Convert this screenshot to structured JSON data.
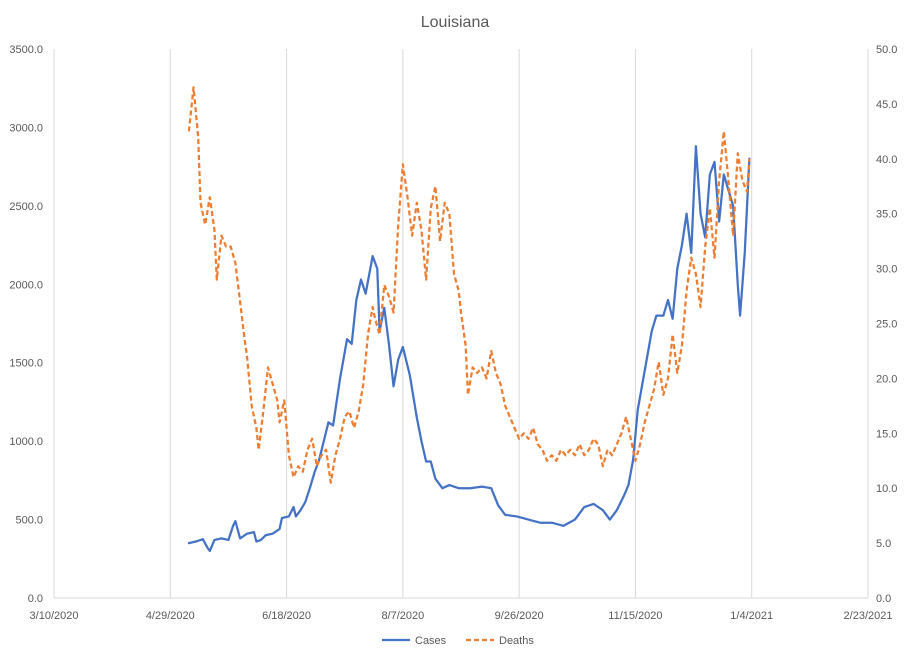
{
  "chart_data": {
    "type": "line",
    "title": "Louisiana",
    "x_axis": {
      "type": "date",
      "ticks": [
        "3/10/2020",
        "4/29/2020",
        "6/18/2020",
        "8/7/2020",
        "9/26/2020",
        "11/15/2020",
        "1/4/2021",
        "2/23/2021"
      ],
      "range": [
        "2020-03-10",
        "2021-02-23"
      ]
    },
    "y_axis_left": {
      "ticks": [
        "0.0",
        "500.0",
        "1000.0",
        "1500.0",
        "2000.0",
        "2500.0",
        "3000.0",
        "3500.0"
      ],
      "range": [
        0,
        3500
      ]
    },
    "y_axis_right": {
      "ticks": [
        "0.0",
        "5.0",
        "10.0",
        "15.0",
        "20.0",
        "25.0",
        "30.0",
        "35.0",
        "40.0",
        "45.0",
        "50.0"
      ],
      "range": [
        0,
        50
      ]
    },
    "grid": "vertical",
    "legend": {
      "position": "bottom",
      "items": [
        "Cases",
        "Deaths"
      ]
    },
    "colors": {
      "cases": "#4472c4",
      "deaths": "#ed7d31",
      "grid": "#d9d9d9",
      "text": "#595959"
    },
    "series": [
      {
        "name": "Cases",
        "axis": "left",
        "style": "solid",
        "points": [
          [
            "2020-05-07",
            350
          ],
          [
            "2020-05-10",
            360
          ],
          [
            "2020-05-13",
            375
          ],
          [
            "2020-05-15",
            320
          ],
          [
            "2020-05-16",
            300
          ],
          [
            "2020-05-18",
            370
          ],
          [
            "2020-05-21",
            380
          ],
          [
            "2020-05-24",
            370
          ],
          [
            "2020-05-26",
            460
          ],
          [
            "2020-05-27",
            490
          ],
          [
            "2020-05-29",
            380
          ],
          [
            "2020-06-01",
            410
          ],
          [
            "2020-06-04",
            420
          ],
          [
            "2020-06-05",
            360
          ],
          [
            "2020-06-07",
            370
          ],
          [
            "2020-06-09",
            400
          ],
          [
            "2020-06-12",
            410
          ],
          [
            "2020-06-15",
            440
          ],
          [
            "2020-06-16",
            510
          ],
          [
            "2020-06-19",
            520
          ],
          [
            "2020-06-21",
            580
          ],
          [
            "2020-06-22",
            520
          ],
          [
            "2020-06-24",
            560
          ],
          [
            "2020-06-26",
            610
          ],
          [
            "2020-06-28",
            700
          ],
          [
            "2020-06-30",
            800
          ],
          [
            "2020-07-02",
            880
          ],
          [
            "2020-07-04",
            1000
          ],
          [
            "2020-07-06",
            1120
          ],
          [
            "2020-07-08",
            1100
          ],
          [
            "2020-07-10",
            1300
          ],
          [
            "2020-07-11",
            1400
          ],
          [
            "2020-07-14",
            1650
          ],
          [
            "2020-07-16",
            1620
          ],
          [
            "2020-07-18",
            1900
          ],
          [
            "2020-07-20",
            2030
          ],
          [
            "2020-07-22",
            1940
          ],
          [
            "2020-07-25",
            2180
          ],
          [
            "2020-07-27",
            2100
          ],
          [
            "2020-07-28",
            1700
          ],
          [
            "2020-07-30",
            1850
          ],
          [
            "2020-08-01",
            1620
          ],
          [
            "2020-08-03",
            1350
          ],
          [
            "2020-08-05",
            1520
          ],
          [
            "2020-08-07",
            1600
          ],
          [
            "2020-08-10",
            1420
          ],
          [
            "2020-08-13",
            1150
          ],
          [
            "2020-08-15",
            1000
          ],
          [
            "2020-08-17",
            870
          ],
          [
            "2020-08-19",
            870
          ],
          [
            "2020-08-21",
            760
          ],
          [
            "2020-08-24",
            700
          ],
          [
            "2020-08-27",
            720
          ],
          [
            "2020-08-31",
            700
          ],
          [
            "2020-09-05",
            700
          ],
          [
            "2020-09-10",
            710
          ],
          [
            "2020-09-14",
            700
          ],
          [
            "2020-09-17",
            590
          ],
          [
            "2020-09-20",
            530
          ],
          [
            "2020-09-25",
            520
          ],
          [
            "2020-09-30",
            500
          ],
          [
            "2020-10-05",
            480
          ],
          [
            "2020-10-10",
            480
          ],
          [
            "2020-10-15",
            460
          ],
          [
            "2020-10-20",
            500
          ],
          [
            "2020-10-24",
            580
          ],
          [
            "2020-10-28",
            600
          ],
          [
            "2020-11-01",
            560
          ],
          [
            "2020-11-04",
            500
          ],
          [
            "2020-11-07",
            560
          ],
          [
            "2020-11-10",
            650
          ],
          [
            "2020-11-12",
            720
          ],
          [
            "2020-11-14",
            880
          ],
          [
            "2020-11-16",
            1200
          ],
          [
            "2020-11-19",
            1450
          ],
          [
            "2020-11-22",
            1700
          ],
          [
            "2020-11-24",
            1800
          ],
          [
            "2020-11-27",
            1800
          ],
          [
            "2020-11-29",
            1900
          ],
          [
            "2020-12-01",
            1780
          ],
          [
            "2020-12-03",
            2100
          ],
          [
            "2020-12-05",
            2250
          ],
          [
            "2020-12-07",
            2450
          ],
          [
            "2020-12-09",
            2200
          ],
          [
            "2020-12-11",
            2880
          ],
          [
            "2020-12-13",
            2450
          ],
          [
            "2020-12-15",
            2300
          ],
          [
            "2020-12-17",
            2700
          ],
          [
            "2020-12-19",
            2780
          ],
          [
            "2020-12-21",
            2400
          ],
          [
            "2020-12-23",
            2700
          ],
          [
            "2020-12-25",
            2600
          ],
          [
            "2020-12-27",
            2500
          ],
          [
            "2020-12-29",
            2000
          ],
          [
            "2020-12-30",
            1800
          ],
          [
            "2021-01-01",
            2200
          ],
          [
            "2021-01-03",
            2800
          ]
        ]
      },
      {
        "name": "Deaths",
        "axis": "right",
        "style": "dashed",
        "points": [
          [
            "2020-05-07",
            42.5
          ],
          [
            "2020-05-09",
            46.5
          ],
          [
            "2020-05-11",
            42.0
          ],
          [
            "2020-05-12",
            36.0
          ],
          [
            "2020-05-14",
            34.0
          ],
          [
            "2020-05-16",
            36.5
          ],
          [
            "2020-05-18",
            33.5
          ],
          [
            "2020-05-19",
            29.0
          ],
          [
            "2020-05-21",
            33.0
          ],
          [
            "2020-05-23",
            32.0
          ],
          [
            "2020-05-25",
            32.0
          ],
          [
            "2020-05-27",
            30.5
          ],
          [
            "2020-05-29",
            27.0
          ],
          [
            "2020-05-31",
            23.5
          ],
          [
            "2020-06-01",
            22.0
          ],
          [
            "2020-06-03",
            17.5
          ],
          [
            "2020-06-05",
            15.5
          ],
          [
            "2020-06-06",
            13.5
          ],
          [
            "2020-06-08",
            17.0
          ],
          [
            "2020-06-10",
            21.0
          ],
          [
            "2020-06-12",
            19.5
          ],
          [
            "2020-06-14",
            18.0
          ],
          [
            "2020-06-15",
            16.0
          ],
          [
            "2020-06-17",
            18.0
          ],
          [
            "2020-06-19",
            13.0
          ],
          [
            "2020-06-21",
            11.0
          ],
          [
            "2020-06-23",
            12.0
          ],
          [
            "2020-06-25",
            11.5
          ],
          [
            "2020-06-27",
            13.5
          ],
          [
            "2020-06-29",
            14.5
          ],
          [
            "2020-07-01",
            12.0
          ],
          [
            "2020-07-03",
            13.0
          ],
          [
            "2020-07-05",
            13.5
          ],
          [
            "2020-07-07",
            10.5
          ],
          [
            "2020-07-09",
            13.0
          ],
          [
            "2020-07-11",
            14.5
          ],
          [
            "2020-07-13",
            16.5
          ],
          [
            "2020-07-15",
            17.0
          ],
          [
            "2020-07-17",
            15.5
          ],
          [
            "2020-07-19",
            17.0
          ],
          [
            "2020-07-21",
            19.5
          ],
          [
            "2020-07-23",
            24.0
          ],
          [
            "2020-07-25",
            26.5
          ],
          [
            "2020-07-26",
            25.5
          ],
          [
            "2020-07-28",
            24.0
          ],
          [
            "2020-07-30",
            28.5
          ],
          [
            "2020-08-01",
            27.5
          ],
          [
            "2020-08-03",
            26.0
          ],
          [
            "2020-08-05",
            34.0
          ],
          [
            "2020-08-07",
            39.5
          ],
          [
            "2020-08-09",
            36.5
          ],
          [
            "2020-08-11",
            33.0
          ],
          [
            "2020-08-13",
            36.0
          ],
          [
            "2020-08-15",
            33.5
          ],
          [
            "2020-08-17",
            29.0
          ],
          [
            "2020-08-19",
            35.5
          ],
          [
            "2020-08-21",
            37.5
          ],
          [
            "2020-08-23",
            32.5
          ],
          [
            "2020-08-25",
            36.0
          ],
          [
            "2020-08-27",
            35.0
          ],
          [
            "2020-08-29",
            29.5
          ],
          [
            "2020-08-31",
            28.0
          ],
          [
            "2020-09-01",
            26.0
          ],
          [
            "2020-09-03",
            23.0
          ],
          [
            "2020-09-04",
            18.5
          ],
          [
            "2020-09-06",
            21.0
          ],
          [
            "2020-09-08",
            20.5
          ],
          [
            "2020-09-10",
            21.0
          ],
          [
            "2020-09-12",
            20.0
          ],
          [
            "2020-09-14",
            22.5
          ],
          [
            "2020-09-16",
            20.5
          ],
          [
            "2020-09-18",
            19.5
          ],
          [
            "2020-09-20",
            17.5
          ],
          [
            "2020-09-22",
            16.5
          ],
          [
            "2020-09-24",
            15.5
          ],
          [
            "2020-09-26",
            14.5
          ],
          [
            "2020-09-28",
            15.0
          ],
          [
            "2020-09-30",
            14.5
          ],
          [
            "2020-10-02",
            15.5
          ],
          [
            "2020-10-04",
            14.0
          ],
          [
            "2020-10-06",
            13.5
          ],
          [
            "2020-10-08",
            12.5
          ],
          [
            "2020-10-10",
            13.0
          ],
          [
            "2020-10-12",
            12.5
          ],
          [
            "2020-10-14",
            13.5
          ],
          [
            "2020-10-16",
            13.0
          ],
          [
            "2020-10-18",
            13.5
          ],
          [
            "2020-10-20",
            13.0
          ],
          [
            "2020-10-22",
            14.0
          ],
          [
            "2020-10-24",
            13.0
          ],
          [
            "2020-10-26",
            13.5
          ],
          [
            "2020-10-28",
            14.5
          ],
          [
            "2020-10-30",
            14.0
          ],
          [
            "2020-11-01",
            12.0
          ],
          [
            "2020-11-03",
            13.5
          ],
          [
            "2020-11-05",
            13.0
          ],
          [
            "2020-11-07",
            14.0
          ],
          [
            "2020-11-09",
            15.0
          ],
          [
            "2020-11-11",
            16.5
          ],
          [
            "2020-11-13",
            14.5
          ],
          [
            "2020-11-15",
            12.5
          ],
          [
            "2020-11-17",
            14.0
          ],
          [
            "2020-11-19",
            16.0
          ],
          [
            "2020-11-21",
            17.5
          ],
          [
            "2020-11-23",
            19.0
          ],
          [
            "2020-11-25",
            21.5
          ],
          [
            "2020-11-27",
            18.5
          ],
          [
            "2020-11-29",
            20.0
          ],
          [
            "2020-12-01",
            24.0
          ],
          [
            "2020-12-03",
            20.5
          ],
          [
            "2020-12-05",
            23.0
          ],
          [
            "2020-12-07",
            28.0
          ],
          [
            "2020-12-09",
            31.0
          ],
          [
            "2020-12-11",
            29.5
          ],
          [
            "2020-12-13",
            26.5
          ],
          [
            "2020-12-15",
            32.0
          ],
          [
            "2020-12-17",
            35.5
          ],
          [
            "2020-12-19",
            31.0
          ],
          [
            "2020-12-21",
            38.0
          ],
          [
            "2020-12-23",
            42.5
          ],
          [
            "2020-12-25",
            38.0
          ],
          [
            "2020-12-27",
            33.0
          ],
          [
            "2020-12-29",
            40.5
          ],
          [
            "2020-12-31",
            38.0
          ],
          [
            "2021-01-02",
            37.0
          ],
          [
            "2021-01-03",
            40.0
          ]
        ]
      }
    ]
  }
}
